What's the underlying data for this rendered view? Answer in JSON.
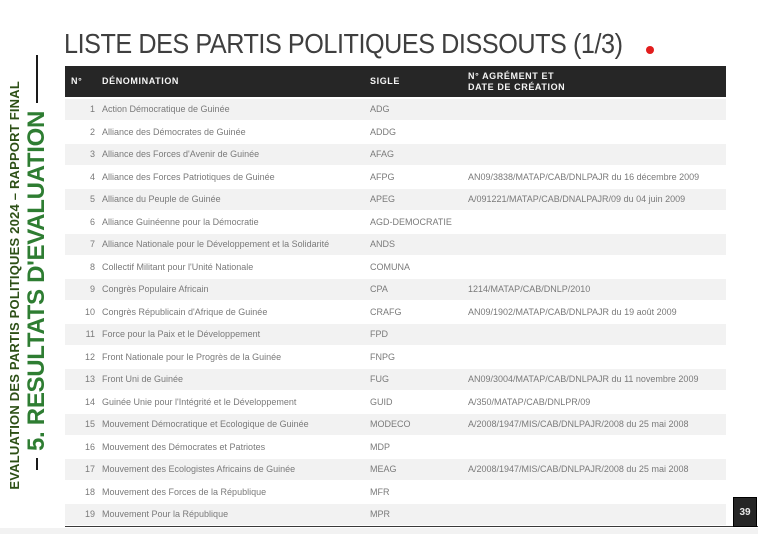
{
  "header": {
    "title": "LISTE DES PARTIS POLITIQUES DISSOUTS (1/3)",
    "accent_dot_color": "#e21d1d",
    "title_color": "#3f3f3f"
  },
  "sidebar": {
    "line1": "EVALUATION DES PARTIS POLITIQUES 2024 – RAPPORT FINAL",
    "line2": "5. RESULTATS D'EVALUATION",
    "line1_color": "#2d5016",
    "line2_color": "#2e7d32"
  },
  "table": {
    "header_bg": "#262626",
    "row_alt_bg": "#f2f2f2",
    "headers": {
      "num": "N°",
      "denomination": "DÉNOMINATION",
      "sigle": "SIGLE",
      "agrement_line1": "N° AGRÉMENT ET",
      "agrement_line2": "DATE DE CRÉATION"
    },
    "rows": [
      {
        "num": "1",
        "denomination": "Action Démocratique de Guinée",
        "sigle": "ADG",
        "agrement": ""
      },
      {
        "num": "2",
        "denomination": "Alliance des Démocrates de Guinée",
        "sigle": "ADDG",
        "agrement": ""
      },
      {
        "num": "3",
        "denomination": "Alliance des Forces d'Avenir de Guinée",
        "sigle": "AFAG",
        "agrement": ""
      },
      {
        "num": "4",
        "denomination": "Alliance des Forces Patriotiques de Guinée",
        "sigle": "AFPG",
        "agrement": "AN09/3838/MATAP/CAB/DNLPAJR du 16 décembre 2009"
      },
      {
        "num": "5",
        "denomination": "Alliance du Peuple de Guinée",
        "sigle": "APEG",
        "agrement": "A/091221/MATAP/CAB/DNALPAJR/09 du 04 juin 2009"
      },
      {
        "num": "6",
        "denomination": "Alliance Guinéenne pour la Démocratie",
        "sigle": "AGD-DEMOCRATIE",
        "agrement": ""
      },
      {
        "num": "7",
        "denomination": "Alliance Nationale pour le Développement et la Solidarité",
        "sigle": "ANDS",
        "agrement": ""
      },
      {
        "num": "8",
        "denomination": "Collectif Militant pour l'Unité Nationale",
        "sigle": "COMUNA",
        "agrement": ""
      },
      {
        "num": "9",
        "denomination": "Congrès Populaire Africain",
        "sigle": "CPA",
        "agrement": "1214/MATAP/CAB/DNLP/2010"
      },
      {
        "num": "10",
        "denomination": "Congrès Républicain d'Afrique de Guinée",
        "sigle": "CRAFG",
        "agrement": "AN09/1902/MATAP/CAB/DNLPAJR du 19 août 2009"
      },
      {
        "num": "11",
        "denomination": "Force pour la Paix et le Développement",
        "sigle": "FPD",
        "agrement": ""
      },
      {
        "num": "12",
        "denomination": "Front Nationale pour le Progrès de la Guinée",
        "sigle": "FNPG",
        "agrement": ""
      },
      {
        "num": "13",
        "denomination": "Front Uni de Guinée",
        "sigle": "FUG",
        "agrement": "AN09/3004/MATAP/CAB/DNLPAJR du 11 novembre 2009"
      },
      {
        "num": "14",
        "denomination": "Guinée Unie pour l'Intégrité et le Développement",
        "sigle": "GUID",
        "agrement": "A/350/MATAP/CAB/DNLPR/09"
      },
      {
        "num": "15",
        "denomination": "Mouvement Démocratique et Ecologique de Guinée",
        "sigle": "MODECO",
        "agrement": "A/2008/1947/MIS/CAB/DNLPAJR/2008 du 25 mai 2008"
      },
      {
        "num": "16",
        "denomination": "Mouvement des Démocrates et Patriotes",
        "sigle": "MDP",
        "agrement": ""
      },
      {
        "num": "17",
        "denomination": "Mouvement des Ecologistes Africains de Guinée",
        "sigle": "MEAG",
        "agrement": "A/2008/1947/MIS/CAB/DNLPAJR/2008 du 25 mai 2008"
      },
      {
        "num": "18",
        "denomination": "Mouvement des Forces de la République",
        "sigle": "MFR",
        "agrement": ""
      },
      {
        "num": "19",
        "denomination": "Mouvement Pour la République",
        "sigle": "MPR",
        "agrement": ""
      }
    ]
  },
  "footer": {
    "page_number": "39"
  }
}
